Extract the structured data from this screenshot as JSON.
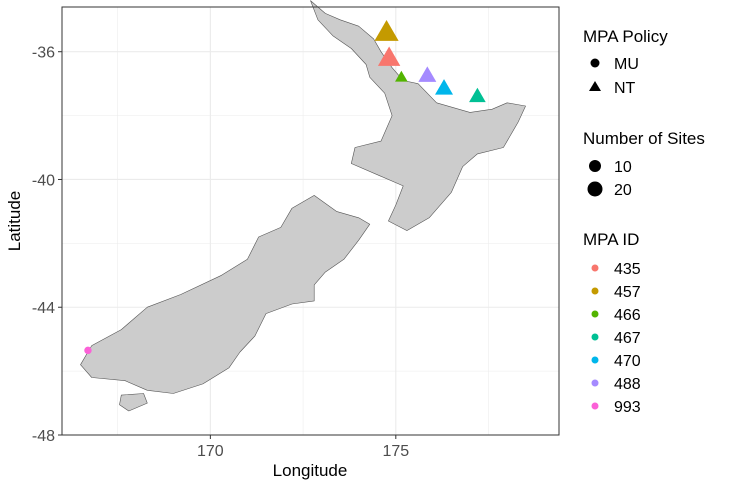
{
  "chart_data": {
    "type": "scatter",
    "title": "",
    "xlabel": "Longitude",
    "ylabel": "Latitude",
    "xlim": [
      166,
      179.4
    ],
    "ylim": [
      -48,
      -34.6
    ],
    "x_ticks": [
      170,
      175
    ],
    "y_ticks": [
      -48,
      -44,
      -40,
      -36
    ],
    "x_tick_labels": [
      "170",
      "175"
    ],
    "y_tick_labels": [
      "-48",
      "-44",
      "-40",
      "-36"
    ],
    "grid": true,
    "legend_position": "right",
    "legends": {
      "policy": {
        "title": "MPA Policy",
        "entries": [
          {
            "label": "MU",
            "shape": "circle"
          },
          {
            "label": "NT",
            "shape": "triangle"
          }
        ]
      },
      "sites": {
        "title": "Number of Sites",
        "entries": [
          {
            "label": "10",
            "size": 10
          },
          {
            "label": "20",
            "size": 20
          }
        ]
      },
      "mpa_id": {
        "title": "MPA ID",
        "entries": [
          {
            "label": "435",
            "color": "#F8766D"
          },
          {
            "label": "457",
            "color": "#C49A00"
          },
          {
            "label": "466",
            "color": "#53B400"
          },
          {
            "label": "467",
            "color": "#00C094"
          },
          {
            "label": "470",
            "color": "#00B6EB"
          },
          {
            "label": "488",
            "color": "#A58AFF"
          },
          {
            "label": "993",
            "color": "#FB61D7"
          }
        ]
      }
    },
    "points": [
      {
        "id": "457",
        "policy": "NT",
        "lon": 174.75,
        "lat": -35.4,
        "sites": 24,
        "color": "#C49A00"
      },
      {
        "id": "435",
        "policy": "NT",
        "lon": 174.82,
        "lat": -36.2,
        "sites": 20,
        "color": "#F8766D"
      },
      {
        "id": "466",
        "policy": "NT",
        "lon": 175.15,
        "lat": -36.8,
        "sites": 5,
        "color": "#53B400"
      },
      {
        "id": "488",
        "policy": "NT",
        "lon": 175.85,
        "lat": -36.75,
        "sites": 12,
        "color": "#A58AFF"
      },
      {
        "id": "470",
        "policy": "NT",
        "lon": 176.3,
        "lat": -37.15,
        "sites": 12,
        "color": "#00B6EB"
      },
      {
        "id": "467",
        "policy": "NT",
        "lon": 177.2,
        "lat": -37.4,
        "sites": 10,
        "color": "#00C094"
      },
      {
        "id": "993",
        "policy": "MU",
        "lon": 166.7,
        "lat": -45.35,
        "sites": 1,
        "color": "#FB61D7"
      }
    ],
    "land_color": "#cccccc",
    "outline_color": "#555555",
    "north_island": [
      [
        172.7,
        -34.4
      ],
      [
        173.1,
        -34.8
      ],
      [
        173.5,
        -35.0
      ],
      [
        174.0,
        -35.2
      ],
      [
        174.4,
        -35.6
      ],
      [
        174.6,
        -36.0
      ],
      [
        174.9,
        -36.5
      ],
      [
        175.2,
        -36.9
      ],
      [
        175.6,
        -37.0
      ],
      [
        176.1,
        -37.6
      ],
      [
        177.0,
        -37.9
      ],
      [
        177.6,
        -37.8
      ],
      [
        178.0,
        -37.6
      ],
      [
        178.5,
        -37.7
      ],
      [
        178.3,
        -38.2
      ],
      [
        177.9,
        -39.0
      ],
      [
        177.2,
        -39.2
      ],
      [
        176.8,
        -39.6
      ],
      [
        176.5,
        -40.4
      ],
      [
        175.9,
        -41.2
      ],
      [
        175.3,
        -41.6
      ],
      [
        174.8,
        -41.3
      ],
      [
        175.0,
        -40.8
      ],
      [
        175.2,
        -40.2
      ],
      [
        174.6,
        -39.9
      ],
      [
        173.8,
        -39.5
      ],
      [
        173.9,
        -39.0
      ],
      [
        174.6,
        -38.8
      ],
      [
        174.9,
        -38.0
      ],
      [
        174.7,
        -37.3
      ],
      [
        174.3,
        -36.8
      ],
      [
        174.2,
        -36.4
      ],
      [
        173.8,
        -35.9
      ],
      [
        173.3,
        -35.5
      ],
      [
        172.9,
        -35.0
      ]
    ],
    "south_island": [
      [
        172.8,
        -40.5
      ],
      [
        173.4,
        -41.0
      ],
      [
        174.0,
        -41.2
      ],
      [
        174.3,
        -41.4
      ],
      [
        174.0,
        -41.9
      ],
      [
        173.6,
        -42.5
      ],
      [
        173.1,
        -42.9
      ],
      [
        172.8,
        -43.3
      ],
      [
        172.8,
        -43.8
      ],
      [
        172.2,
        -43.9
      ],
      [
        171.5,
        -44.2
      ],
      [
        171.2,
        -44.9
      ],
      [
        170.8,
        -45.4
      ],
      [
        170.5,
        -45.9
      ],
      [
        169.8,
        -46.4
      ],
      [
        169.0,
        -46.7
      ],
      [
        168.3,
        -46.6
      ],
      [
        167.7,
        -46.3
      ],
      [
        166.8,
        -46.2
      ],
      [
        166.5,
        -45.8
      ],
      [
        166.8,
        -45.2
      ],
      [
        167.6,
        -44.7
      ],
      [
        168.3,
        -44.0
      ],
      [
        169.2,
        -43.6
      ],
      [
        170.3,
        -43.0
      ],
      [
        171.0,
        -42.5
      ],
      [
        171.3,
        -41.8
      ],
      [
        171.9,
        -41.5
      ],
      [
        172.2,
        -40.9
      ]
    ],
    "stewart_island": [
      [
        167.6,
        -46.75
      ],
      [
        168.2,
        -46.7
      ],
      [
        168.3,
        -47.0
      ],
      [
        167.8,
        -47.25
      ],
      [
        167.55,
        -47.05
      ]
    ]
  }
}
